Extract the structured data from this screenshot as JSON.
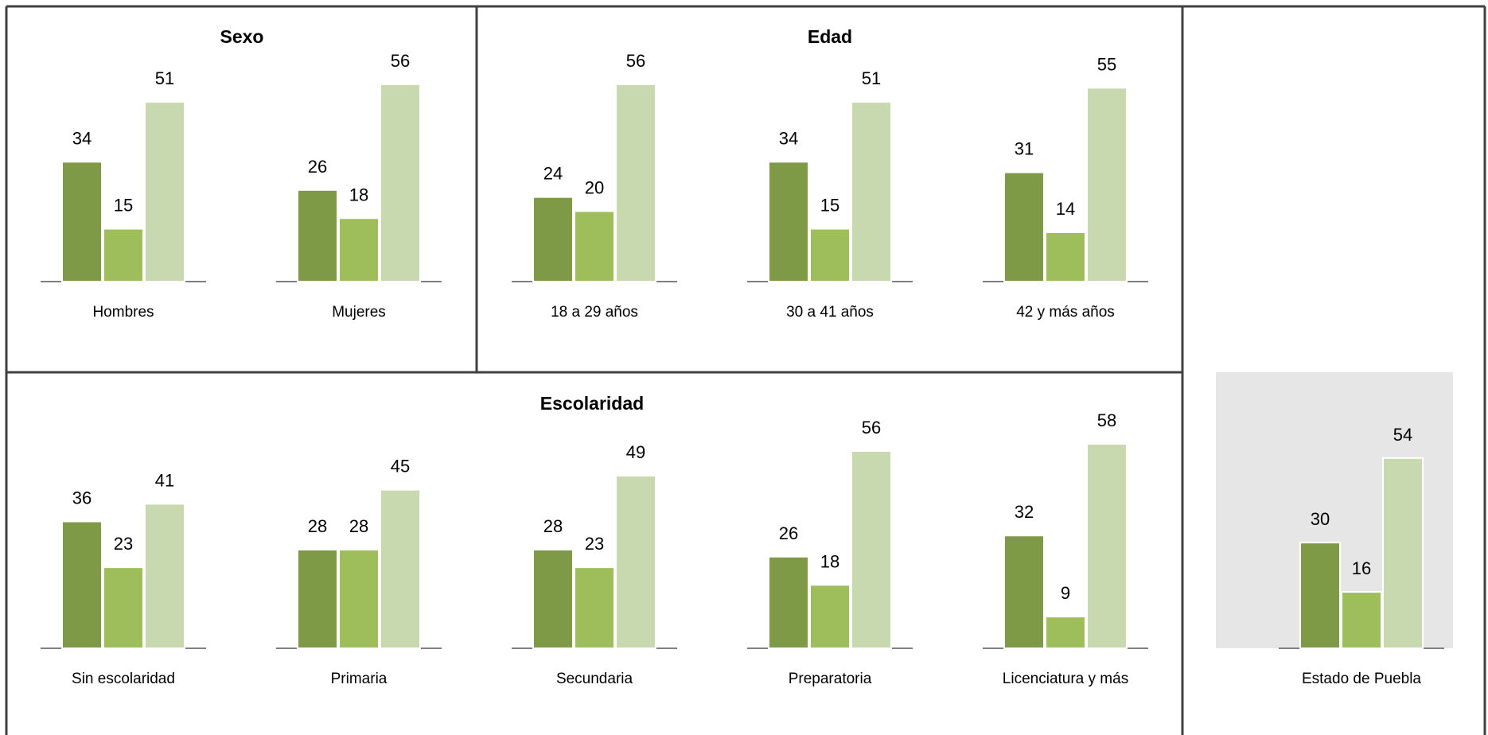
{
  "colors": {
    "series": [
      "#7e9a47",
      "#9dbe5a",
      "#c8d9b0"
    ],
    "highlight_bg": "#e6e6e6",
    "frame": "#404040",
    "baseline": "#7f7f7f"
  },
  "chart_data": [
    {
      "type": "bar",
      "title": "Sexo",
      "categories": [
        "Hombres",
        "Mujeres"
      ],
      "series": [
        {
          "values": [
            34,
            26
          ]
        },
        {
          "values": [
            15,
            18
          ]
        },
        {
          "values": [
            51,
            56
          ]
        }
      ],
      "ylim": [
        0,
        60
      ]
    },
    {
      "type": "bar",
      "title": "Edad",
      "categories": [
        "18 a 29 años",
        "30 a 41 años",
        "42 y más años"
      ],
      "series": [
        {
          "values": [
            24,
            34,
            31
          ]
        },
        {
          "values": [
            20,
            15,
            14
          ]
        },
        {
          "values": [
            56,
            51,
            55
          ]
        }
      ],
      "ylim": [
        0,
        60
      ]
    },
    {
      "type": "bar",
      "title": "Escolaridad",
      "categories": [
        "Sin escolaridad",
        "Primaria",
        "Secundaria",
        "Preparatoria",
        "Licenciatura y más"
      ],
      "series": [
        {
          "values": [
            36,
            28,
            28,
            26,
            32
          ]
        },
        {
          "values": [
            23,
            28,
            23,
            18,
            9
          ]
        },
        {
          "values": [
            41,
            45,
            49,
            56,
            58
          ]
        }
      ],
      "ylim": [
        0,
        60
      ]
    },
    {
      "type": "bar",
      "title": "",
      "categories": [
        "Estado de Puebla"
      ],
      "series": [
        {
          "values": [
            30
          ]
        },
        {
          "values": [
            16
          ]
        },
        {
          "values": [
            54
          ]
        }
      ],
      "ylim": [
        0,
        60
      ]
    }
  ]
}
